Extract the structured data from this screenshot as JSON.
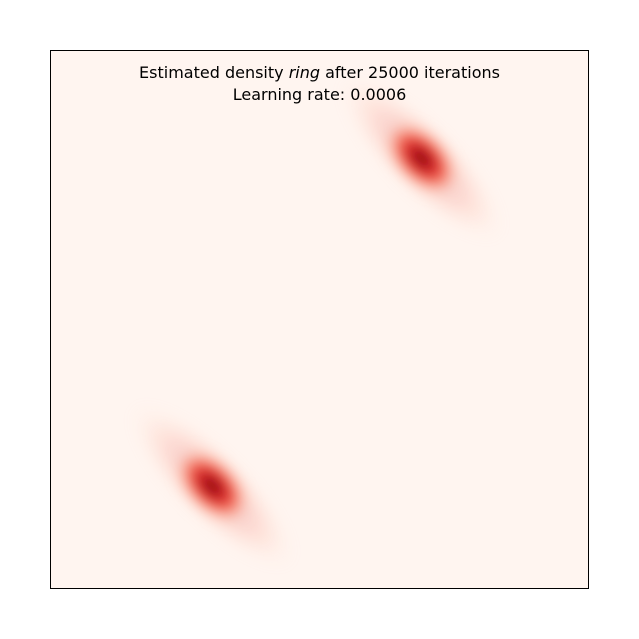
{
  "chart_data": {
    "type": "heatmap",
    "title": {
      "before": "Estimated density ",
      "dataset": "ring",
      "after": " after 25000 iterations"
    },
    "subtitle": "Learning rate: 0.0006",
    "colormap": "Reds",
    "background_color": "#fff5f0",
    "peak_color": "#67000d",
    "grid": false,
    "ticks": false,
    "density_modes": [
      {
        "x": 0.69,
        "y": 0.8,
        "spread_major": 0.09,
        "spread_minor": 0.045,
        "angle_deg": 45,
        "peak": 1.0
      },
      {
        "x": 0.3,
        "y": 0.19,
        "spread_major": 0.09,
        "spread_minor": 0.045,
        "angle_deg": 45,
        "peak": 1.0
      }
    ]
  }
}
